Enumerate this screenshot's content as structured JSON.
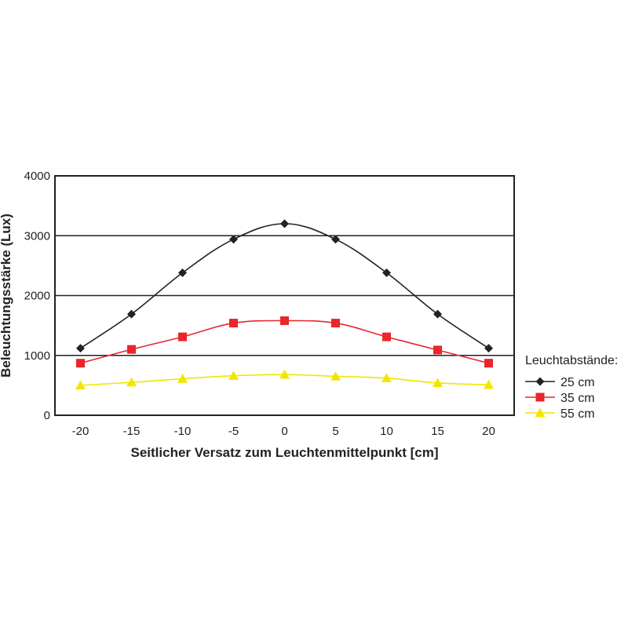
{
  "chart_data": {
    "type": "line",
    "xlabel": "Seitlicher Versatz zum Leuchtenmittelpunkt [cm]",
    "ylabel": "Beleuchtungsstärke (Lux)",
    "x": [
      -20,
      -15,
      -10,
      -5,
      0,
      5,
      10,
      15,
      20
    ],
    "x_tick_labels": [
      "-20",
      "-15",
      "-10",
      "-5",
      "0",
      "5",
      "10",
      "15",
      "20"
    ],
    "y_ticks": [
      0,
      1000,
      2000,
      3000,
      4000
    ],
    "y_tick_labels": [
      "0",
      "1000",
      "2000",
      "3000",
      "4000"
    ],
    "xlim": [
      -22.5,
      22.5
    ],
    "ylim": [
      0,
      4000
    ],
    "grid": "horizontal",
    "legend": {
      "title": "Leuchtabstände:",
      "placement": "right"
    },
    "series": [
      {
        "name": "25 cm",
        "marker": "diamond",
        "color": "#222222",
        "values": [
          1120,
          1690,
          2380,
          2940,
          3200,
          2940,
          2380,
          1690,
          1120
        ]
      },
      {
        "name": "35 cm",
        "marker": "square",
        "color": "#e8262b",
        "values": [
          870,
          1100,
          1310,
          1540,
          1580,
          1540,
          1310,
          1090,
          870
        ]
      },
      {
        "name": "55 cm",
        "marker": "triangle",
        "color": "#f2e600",
        "values": [
          500,
          550,
          610,
          660,
          680,
          650,
          620,
          540,
          510
        ]
      }
    ]
  }
}
